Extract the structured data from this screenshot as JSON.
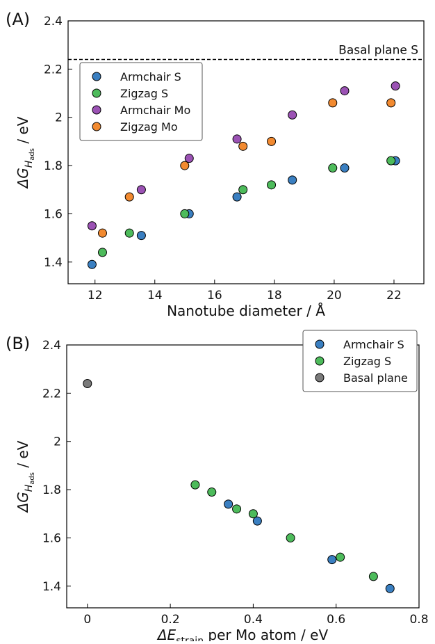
{
  "chart_data": [
    {
      "type": "scatter",
      "panel_label": "(A)",
      "xlabel": "Nanotube diameter / Å",
      "ylabel": {
        "text": "ΔG",
        "sub": "H",
        "subsub": "ads",
        "unit": " / eV"
      },
      "xlim": [
        11.1,
        23
      ],
      "ylim": [
        1.31,
        2.4
      ],
      "xticks": [
        12,
        14,
        16,
        18,
        20,
        22
      ],
      "yticks": [
        1.4,
        1.6,
        1.8,
        2.0,
        2.2,
        2.4
      ],
      "hline": 2.24,
      "hline_label": "Basal plane S",
      "legend": "upper left",
      "series": [
        {
          "name": "Armchair S",
          "color": "#3a7fc1",
          "x": [
            11.9,
            13.55,
            15.15,
            16.75,
            18.6,
            20.35,
            22.05
          ],
          "values": [
            1.39,
            1.51,
            1.6,
            1.67,
            1.74,
            1.79,
            1.82
          ]
        },
        {
          "name": "Zigzag S",
          "color": "#4dbb5b",
          "x": [
            12.25,
            13.15,
            15.0,
            16.95,
            17.9,
            19.95,
            21.9
          ],
          "values": [
            1.44,
            1.52,
            1.6,
            1.7,
            1.72,
            1.79,
            1.82
          ]
        },
        {
          "name": "Armchair Mo",
          "color": "#9b52b4",
          "x": [
            11.9,
            13.55,
            15.15,
            16.75,
            18.6,
            20.35,
            22.05
          ],
          "values": [
            1.55,
            1.7,
            1.83,
            1.91,
            2.01,
            2.11,
            2.13
          ]
        },
        {
          "name": "Zigzag Mo",
          "color": "#f28a30",
          "x": [
            12.25,
            13.15,
            15.0,
            16.95,
            17.9,
            19.95,
            21.9
          ],
          "values": [
            1.52,
            1.67,
            1.8,
            1.88,
            1.9,
            2.06,
            2.06
          ]
        }
      ]
    },
    {
      "type": "scatter",
      "panel_label": "(B)",
      "xlabel": {
        "text": "ΔE",
        "sub": "strain",
        "rest": " per Mo atom / eV"
      },
      "ylabel": {
        "text": "ΔG",
        "sub": "H",
        "subsub": "ads",
        "unit": " / eV"
      },
      "xlim": [
        -0.05,
        0.8
      ],
      "ylim": [
        1.31,
        2.4
      ],
      "xticks": [
        0.0,
        0.2,
        0.4,
        0.6,
        0.8
      ],
      "yticks": [
        1.4,
        1.6,
        1.8,
        2.0,
        2.2,
        2.4
      ],
      "legend": "upper right",
      "series": [
        {
          "name": "Armchair S",
          "color": "#3a7fc1",
          "x": [
            0.73,
            0.59,
            0.41,
            0.34
          ],
          "values": [
            1.39,
            1.51,
            1.67,
            1.74
          ]
        },
        {
          "name": "Zigzag S",
          "color": "#4dbb5b",
          "x": [
            0.69,
            0.61,
            0.49,
            0.4,
            0.36,
            0.3,
            0.26
          ],
          "values": [
            1.44,
            1.52,
            1.6,
            1.7,
            1.72,
            1.79,
            1.82
          ]
        },
        {
          "name": "Basal plane",
          "color": "#7a7a7a",
          "x": [
            0.0
          ],
          "values": [
            2.24
          ]
        }
      ]
    }
  ]
}
